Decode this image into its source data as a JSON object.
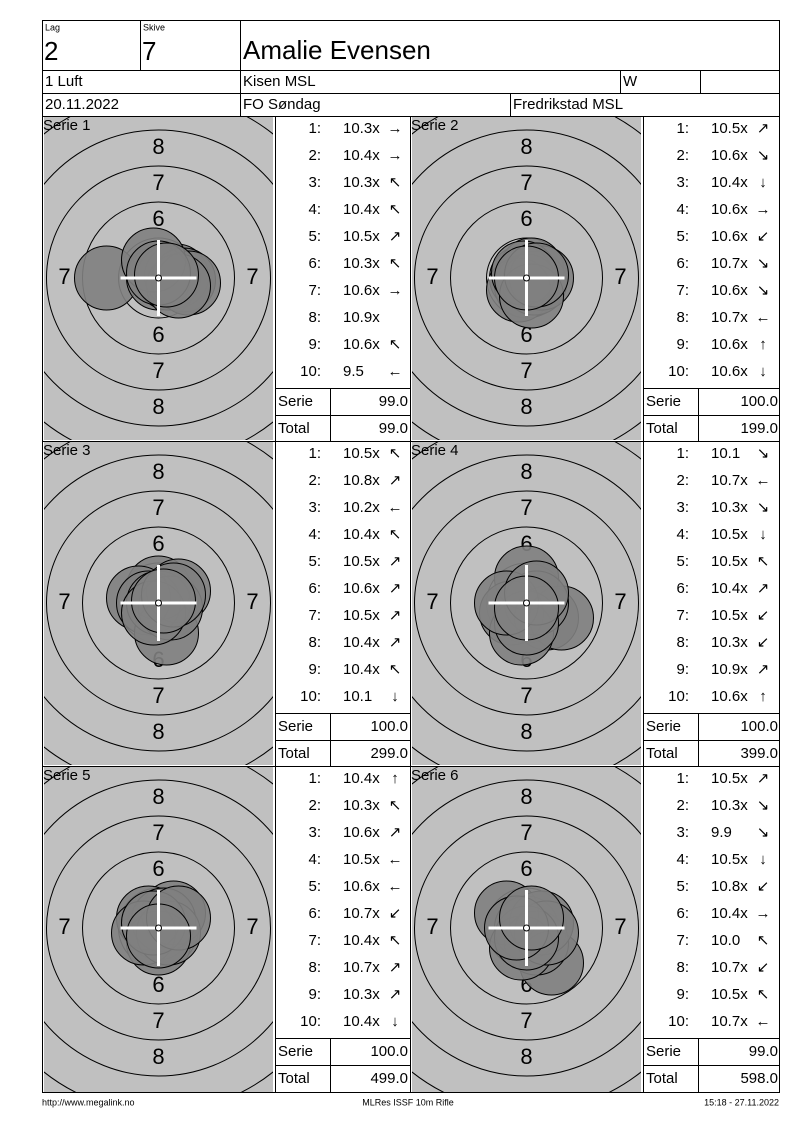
{
  "header": {
    "lag_label": "Lag",
    "lag": "2",
    "skive_label": "Skive",
    "skive": "7",
    "name": "Amalie Evensen",
    "class": "1 Luft",
    "club": "Kisen MSL",
    "gender": "W",
    "date": "20.11.2022",
    "event": "FO Søndag",
    "venue": "Fredrikstad MSL"
  },
  "ring_labels": [
    "6",
    "7",
    "8"
  ],
  "series": [
    {
      "title": "Serie 1",
      "shots": [
        {
          "no": "1:",
          "score": "10.3x",
          "dir": "→"
        },
        {
          "no": "2:",
          "score": "10.4x",
          "dir": "→"
        },
        {
          "no": "3:",
          "score": "10.3x",
          "dir": "↖"
        },
        {
          "no": "4:",
          "score": "10.4x",
          "dir": "↖"
        },
        {
          "no": "5:",
          "score": "10.5x",
          "dir": "↗"
        },
        {
          "no": "6:",
          "score": "10.3x",
          "dir": "↖"
        },
        {
          "no": "7:",
          "score": "10.6x",
          "dir": "→"
        },
        {
          "no": "8:",
          "score": "10.9x"
        },
        {
          "no": "9:",
          "score": "10.6x",
          "dir": "↖"
        },
        {
          "no": "10:",
          "score": "9.5",
          "dir": "←"
        }
      ],
      "serie_label": "Serie",
      "serie": "99.0",
      "total_label": "Total",
      "total": "99.0"
    },
    {
      "title": "Serie 2",
      "shots": [
        {
          "no": "1:",
          "score": "10.5x",
          "dir": "↗"
        },
        {
          "no": "2:",
          "score": "10.6x",
          "dir": "↘"
        },
        {
          "no": "3:",
          "score": "10.4x",
          "dir": "↓"
        },
        {
          "no": "4:",
          "score": "10.6x",
          "dir": "→"
        },
        {
          "no": "5:",
          "score": "10.6x",
          "dir": "↙"
        },
        {
          "no": "6:",
          "score": "10.7x",
          "dir": "↘"
        },
        {
          "no": "7:",
          "score": "10.6x",
          "dir": "↘"
        },
        {
          "no": "8:",
          "score": "10.7x",
          "dir": "←"
        },
        {
          "no": "9:",
          "score": "10.6x",
          "dir": "↑"
        },
        {
          "no": "10:",
          "score": "10.6x",
          "dir": "↓"
        }
      ],
      "serie_label": "Serie",
      "serie": "100.0",
      "total_label": "Total",
      "total": "199.0"
    },
    {
      "title": "Serie 3",
      "shots": [
        {
          "no": "1:",
          "score": "10.5x",
          "dir": "↖"
        },
        {
          "no": "2:",
          "score": "10.8x",
          "dir": "↗"
        },
        {
          "no": "3:",
          "score": "10.2x",
          "dir": "←"
        },
        {
          "no": "4:",
          "score": "10.4x",
          "dir": "↖"
        },
        {
          "no": "5:",
          "score": "10.5x",
          "dir": "↗"
        },
        {
          "no": "6:",
          "score": "10.6x",
          "dir": "↗"
        },
        {
          "no": "7:",
          "score": "10.5x",
          "dir": "↗"
        },
        {
          "no": "8:",
          "score": "10.4x",
          "dir": "↗"
        },
        {
          "no": "9:",
          "score": "10.4x",
          "dir": "↖"
        },
        {
          "no": "10:",
          "score": "10.1",
          "dir": "↓"
        }
      ],
      "serie_label": "Serie",
      "serie": "100.0",
      "total_label": "Total",
      "total": "299.0"
    },
    {
      "title": "Serie 4",
      "shots": [
        {
          "no": "1:",
          "score": "10.1",
          "dir": "↘"
        },
        {
          "no": "2:",
          "score": "10.7x",
          "dir": "←"
        },
        {
          "no": "3:",
          "score": "10.3x",
          "dir": "↘"
        },
        {
          "no": "4:",
          "score": "10.5x",
          "dir": "↓"
        },
        {
          "no": "5:",
          "score": "10.5x",
          "dir": "↖"
        },
        {
          "no": "6:",
          "score": "10.4x",
          "dir": "↗"
        },
        {
          "no": "7:",
          "score": "10.5x",
          "dir": "↙"
        },
        {
          "no": "8:",
          "score": "10.3x",
          "dir": "↙"
        },
        {
          "no": "9:",
          "score": "10.9x",
          "dir": "↗"
        },
        {
          "no": "10:",
          "score": "10.6x",
          "dir": "↑"
        }
      ],
      "serie_label": "Serie",
      "serie": "100.0",
      "total_label": "Total",
      "total": "399.0"
    },
    {
      "title": "Serie 5",
      "shots": [
        {
          "no": "1:",
          "score": "10.4x",
          "dir": "↑"
        },
        {
          "no": "2:",
          "score": "10.3x",
          "dir": "↖"
        },
        {
          "no": "3:",
          "score": "10.6x",
          "dir": "↗"
        },
        {
          "no": "4:",
          "score": "10.5x",
          "dir": "←"
        },
        {
          "no": "5:",
          "score": "10.6x",
          "dir": "←"
        },
        {
          "no": "6:",
          "score": "10.7x",
          "dir": "↙"
        },
        {
          "no": "7:",
          "score": "10.4x",
          "dir": "↖"
        },
        {
          "no": "8:",
          "score": "10.7x",
          "dir": "↗"
        },
        {
          "no": "9:",
          "score": "10.3x",
          "dir": "↗"
        },
        {
          "no": "10:",
          "score": "10.4x",
          "dir": "↓"
        }
      ],
      "serie_label": "Serie",
      "serie": "100.0",
      "total_label": "Total",
      "total": "499.0"
    },
    {
      "title": "Serie 6",
      "shots": [
        {
          "no": "1:",
          "score": "10.5x",
          "dir": "↗"
        },
        {
          "no": "2:",
          "score": "10.3x",
          "dir": "↘"
        },
        {
          "no": "3:",
          "score": "9.9",
          "dir": "↘"
        },
        {
          "no": "4:",
          "score": "10.5x",
          "dir": "↓"
        },
        {
          "no": "5:",
          "score": "10.8x",
          "dir": "↙"
        },
        {
          "no": "6:",
          "score": "10.4x",
          "dir": "→"
        },
        {
          "no": "7:",
          "score": "10.0",
          "dir": "↖"
        },
        {
          "no": "8:",
          "score": "10.7x",
          "dir": "↙"
        },
        {
          "no": "9:",
          "score": "10.5x",
          "dir": "↖"
        },
        {
          "no": "10:",
          "score": "10.7x",
          "dir": "←"
        }
      ],
      "serie_label": "Serie",
      "serie": "99.0",
      "total_label": "Total",
      "total": "598.0"
    }
  ],
  "footer": {
    "url": "http://www.megalink.no",
    "program": "MLRes ISSF 10m Rifle",
    "timestamp": "15:18 - 27.11.2022"
  }
}
